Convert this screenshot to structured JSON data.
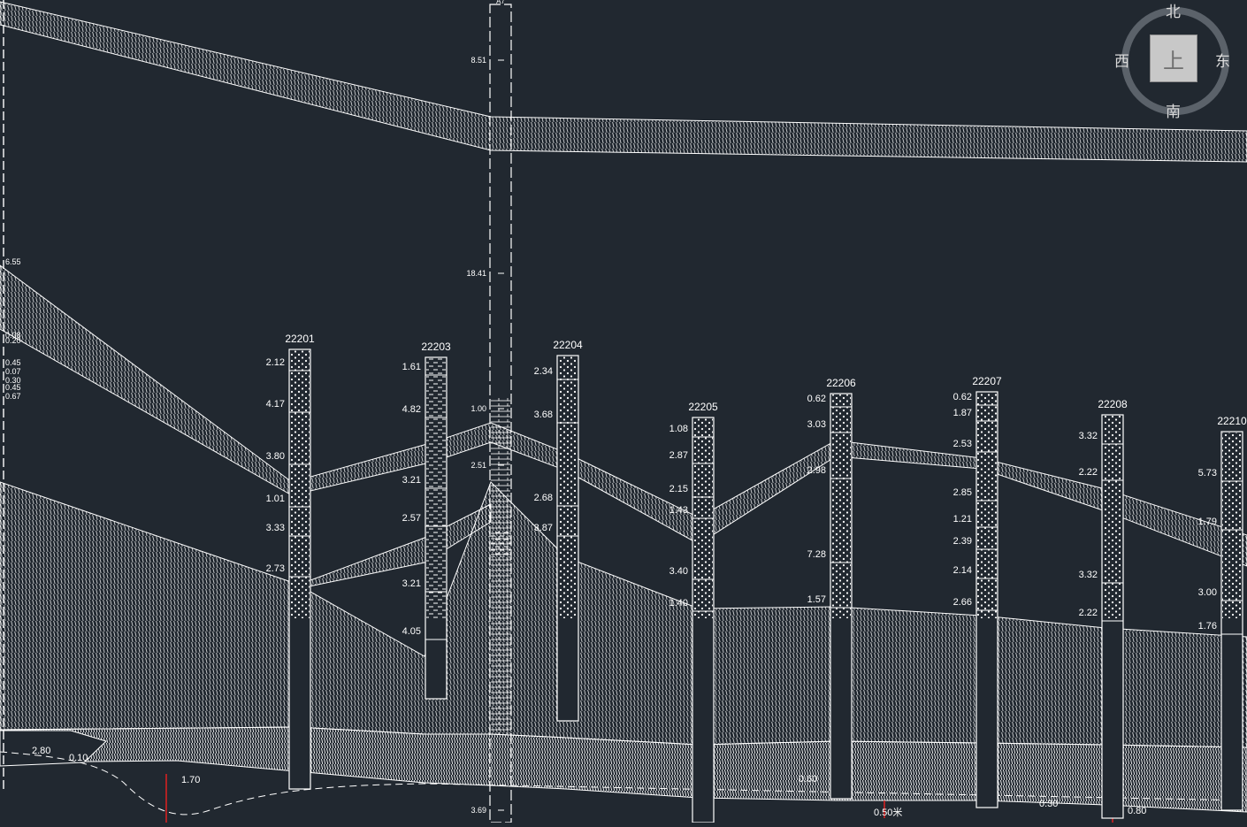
{
  "viewcube": {
    "north": "北",
    "south": "南",
    "east": "东",
    "west": "西",
    "top_face": "上",
    "ring_color": "#5b626a"
  },
  "colors": {
    "background": "#212830",
    "strata_line": "#ffffff",
    "marker": "#e02020"
  },
  "boreholes": [
    {
      "id": "22201",
      "layers": [
        "2.12",
        "4.17",
        "3.80",
        "1.01",
        "3.33",
        "2.73"
      ]
    },
    {
      "id": "22203",
      "layers": [
        "1.61",
        "4.82",
        "3.21",
        "2.57",
        "3.21",
        "4.05"
      ]
    },
    {
      "id": "22204",
      "layers": [
        "2.34",
        "3.68",
        "2.68",
        "3.87"
      ]
    },
    {
      "id": "22205",
      "layers": [
        "1.08",
        "2.87",
        "2.15",
        "1.43",
        "3.40",
        "1.40"
      ]
    },
    {
      "id": "22206",
      "layers": [
        "0.62",
        "3.03",
        "2.98",
        "7.28",
        "1.57"
      ]
    },
    {
      "id": "22207",
      "layers": [
        "0.62",
        "1.87",
        "2.53",
        "2.85",
        "1.21",
        "2.39",
        "2.14",
        "2.66"
      ]
    },
    {
      "id": "22208",
      "layers": [
        "3.32",
        "2.22",
        "3.32",
        "2.22"
      ]
    },
    {
      "id": "22210",
      "layers": [
        "5.73",
        "1.79",
        "3.00",
        "1.76"
      ]
    }
  ],
  "main_column": {
    "id": "A7",
    "layers": [
      "8.51",
      "18.41",
      "1.00",
      "2.51",
      "3.69"
    ]
  },
  "edge_labels": [
    "6.55",
    "0.08",
    "0.20",
    "0.45",
    "0.07",
    "0.30",
    "0.45",
    "0.67"
  ],
  "bottom_labels": [
    "2.80",
    "0.10",
    "1.70",
    "0.60",
    "0.50米",
    "0.30",
    "0.80"
  ]
}
